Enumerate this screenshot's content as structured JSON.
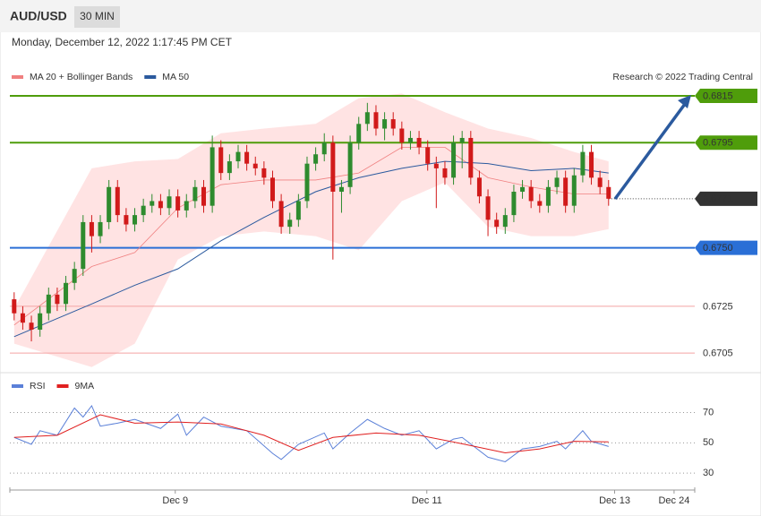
{
  "header": {
    "symbol": "AUD/USD",
    "timeframe": "30 MIN",
    "datetime": "Monday, December 12, 2022 1:17:45 PM CET"
  },
  "chart_data": [
    {
      "type": "candlestick",
      "annotation": "Research © 2022 Trading Central",
      "xlim": [
        -0.5,
        79
      ],
      "ylim": [
        0.6697,
        0.6833
      ],
      "up_color": "#2e8b2e",
      "down_color": "#d11a1a",
      "open": [
        0.6728,
        0.6722,
        0.6718,
        0.6715,
        0.6722,
        0.673,
        0.6726,
        0.6735,
        0.6741,
        0.6761,
        0.6755,
        0.6761,
        0.6776,
        0.6764,
        0.676,
        0.6764,
        0.6768,
        0.677,
        0.6767,
        0.6772,
        0.6766,
        0.677,
        0.6776,
        0.6768,
        0.6793,
        0.6782,
        0.6787,
        0.6791,
        0.6786,
        0.6784,
        0.678,
        0.677,
        0.6759,
        0.6762,
        0.677,
        0.6786,
        0.679,
        0.6795,
        0.6774,
        0.6776,
        0.6795,
        0.6803,
        0.6808,
        0.6801,
        0.6805,
        0.6801,
        0.6795,
        0.6797,
        0.6793,
        0.6786,
        0.6784,
        0.678,
        0.6795,
        0.6797,
        0.678,
        0.6772,
        0.6762,
        0.6759,
        0.6764,
        0.6774,
        0.6776,
        0.677,
        0.6768,
        0.6776,
        0.678,
        0.6768,
        0.6781,
        0.6791,
        0.678,
        0.6776
      ],
      "high": [
        0.6731,
        0.6725,
        0.6721,
        0.6725,
        0.6733,
        0.6733,
        0.6738,
        0.6744,
        0.6764,
        0.6764,
        0.6764,
        0.6779,
        0.6779,
        0.6767,
        0.6767,
        0.6771,
        0.6773,
        0.6773,
        0.6775,
        0.6775,
        0.6773,
        0.6779,
        0.6779,
        0.6798,
        0.6796,
        0.679,
        0.6794,
        0.6794,
        0.6789,
        0.6787,
        0.6783,
        0.6773,
        0.6765,
        0.6773,
        0.6789,
        0.6793,
        0.6799,
        0.6798,
        0.6779,
        0.6798,
        0.6806,
        0.6812,
        0.6811,
        0.6808,
        0.6808,
        0.6804,
        0.68,
        0.68,
        0.6796,
        0.6789,
        0.6787,
        0.6798,
        0.68,
        0.68,
        0.6783,
        0.6775,
        0.6765,
        0.6767,
        0.6777,
        0.6779,
        0.6779,
        0.6773,
        0.6779,
        0.6783,
        0.6783,
        0.6784,
        0.6794,
        0.6794,
        0.6783,
        0.6779
      ],
      "low": [
        0.6719,
        0.6715,
        0.671,
        0.6712,
        0.6719,
        0.6723,
        0.6723,
        0.6732,
        0.6738,
        0.6748,
        0.6752,
        0.6758,
        0.6761,
        0.6757,
        0.6757,
        0.6761,
        0.6765,
        0.6764,
        0.6764,
        0.6763,
        0.6763,
        0.6767,
        0.6765,
        0.6765,
        0.6779,
        0.6779,
        0.6784,
        0.6783,
        0.6781,
        0.6777,
        0.6767,
        0.6756,
        0.6756,
        0.6759,
        0.6767,
        0.6783,
        0.6787,
        0.6745,
        0.6765,
        0.6773,
        0.6792,
        0.68,
        0.6798,
        0.6796,
        0.6798,
        0.6792,
        0.6792,
        0.679,
        0.6783,
        0.6767,
        0.6777,
        0.6777,
        0.6784,
        0.6777,
        0.6769,
        0.6755,
        0.6756,
        0.6756,
        0.6761,
        0.6771,
        0.6767,
        0.6765,
        0.6765,
        0.6773,
        0.6765,
        0.6765,
        0.6778,
        0.6777,
        0.6773,
        0.6768
      ],
      "close": [
        0.6722,
        0.6718,
        0.6715,
        0.6722,
        0.673,
        0.6726,
        0.6735,
        0.6741,
        0.6761,
        0.6755,
        0.6761,
        0.6776,
        0.6764,
        0.676,
        0.6764,
        0.6768,
        0.677,
        0.6767,
        0.6772,
        0.6766,
        0.677,
        0.6776,
        0.6768,
        0.6793,
        0.6782,
        0.6787,
        0.6791,
        0.6786,
        0.6784,
        0.678,
        0.677,
        0.6759,
        0.6762,
        0.677,
        0.6786,
        0.679,
        0.6795,
        0.6774,
        0.6776,
        0.6795,
        0.6803,
        0.6808,
        0.6801,
        0.6805,
        0.6801,
        0.6795,
        0.6797,
        0.6793,
        0.6786,
        0.6784,
        0.678,
        0.6795,
        0.6797,
        0.678,
        0.6772,
        0.6762,
        0.6759,
        0.6764,
        0.6774,
        0.6776,
        0.677,
        0.6768,
        0.6776,
        0.678,
        0.6768,
        0.6781,
        0.6791,
        0.678,
        0.6776,
        0.6771
      ],
      "series": [
        {
          "name": "MA 20 + Bollinger Bands",
          "color": "#f08080",
          "band_color": "#ffd9d9",
          "x": [
            0,
            9,
            14,
            19,
            24,
            29,
            35,
            40,
            45,
            50,
            55,
            60,
            65,
            69
          ],
          "values": [
            0.6717,
            0.6742,
            0.6748,
            0.6767,
            0.6777,
            0.6779,
            0.6779,
            0.6782,
            0.6793,
            0.6793,
            0.678,
            0.6776,
            0.6773,
            0.6773
          ],
          "upper": [
            0.6724,
            0.6784,
            0.6787,
            0.6788,
            0.6799,
            0.6801,
            0.6803,
            0.6814,
            0.6816,
            0.6808,
            0.6801,
            0.6797,
            0.6791,
            0.6787
          ],
          "lower": [
            0.6709,
            0.6699,
            0.6709,
            0.6745,
            0.6755,
            0.6757,
            0.6755,
            0.6749,
            0.677,
            0.6778,
            0.6759,
            0.6755,
            0.6755,
            0.6758
          ]
        },
        {
          "name": "MA 50",
          "color": "#2b5a9e",
          "x": [
            0,
            9,
            14,
            19,
            24,
            29,
            35,
            40,
            45,
            50,
            55,
            60,
            65,
            69
          ],
          "values": [
            0.6712,
            0.6726,
            0.6734,
            0.6741,
            0.6753,
            0.6763,
            0.6774,
            0.678,
            0.6784,
            0.6787,
            0.6786,
            0.6783,
            0.6784,
            0.6782
          ]
        }
      ],
      "levels": [
        0.6815,
        0.6795,
        0.6771,
        {
          "value": 0.675,
          "label": "0.6750"
        },
        0.6725,
        0.6705
      ],
      "level_styles": [
        "resistance",
        "resistance",
        "last",
        "support",
        "target",
        "target"
      ]
    },
    {
      "type": "line",
      "xlim": [
        -0.5,
        79
      ],
      "ylim": [
        20,
        94
      ],
      "yticks": [
        70,
        50,
        30
      ],
      "xticks": [
        {
          "value": 18.7,
          "label": "Dec 9"
        },
        {
          "value": 47.9,
          "label": "Dec 11"
        },
        {
          "value": 69.7,
          "label": "Dec 13"
        },
        {
          "value": 76.6,
          "label": "Dec 24"
        }
      ],
      "series": [
        {
          "name": "RSI",
          "color": "#5b80d8",
          "x": [
            0,
            2,
            3,
            5,
            7,
            8,
            9,
            10,
            12,
            14,
            17,
            19,
            20,
            22,
            24,
            27,
            30,
            31,
            33,
            36,
            37,
            39,
            41,
            43,
            45,
            47,
            49,
            51,
            52,
            55,
            57,
            59,
            61,
            63,
            64,
            66,
            67,
            69
          ],
          "values": [
            53.6,
            49,
            58,
            55,
            73,
            67,
            74.5,
            61,
            63,
            65.5,
            59.5,
            69,
            55,
            67,
            61,
            58,
            43,
            39,
            49,
            56.5,
            46,
            56.5,
            65.5,
            59.5,
            55,
            58,
            46,
            52.5,
            53.6,
            40.5,
            37.5,
            46,
            47.6,
            51,
            46,
            58,
            51,
            47.6
          ]
        },
        {
          "name": "9MA",
          "color": "#e02020",
          "x": [
            0,
            5,
            10,
            14,
            19,
            24,
            29,
            33,
            37,
            42,
            47,
            52,
            57,
            61,
            65,
            69
          ],
          "values": [
            53.6,
            55,
            68.5,
            63,
            63.7,
            62.5,
            55,
            45,
            53.6,
            56.5,
            55,
            49.4,
            43.4,
            46,
            51,
            50.6
          ]
        }
      ]
    }
  ]
}
